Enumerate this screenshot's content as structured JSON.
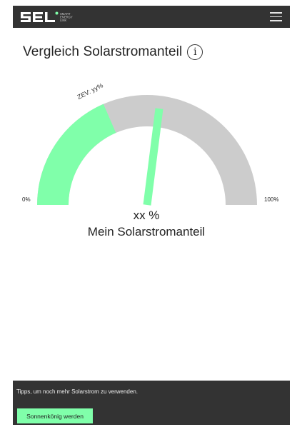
{
  "header": {
    "logo_text": "SEL",
    "logo_tagline": [
      "SMART",
      "ENERGY",
      "LINK"
    ],
    "menu_icon": "hamburger-menu-icon",
    "background_color": "#333333",
    "logo_dot_color": "#80ffaa"
  },
  "page": {
    "title": "Vergleich Solarstromanteil",
    "info_icon_text": "i"
  },
  "gauge": {
    "min_label": "0%",
    "max_label": "100%",
    "zev_label": "ZEV: yy%",
    "zev_share_percent": 37,
    "needle_percent": 54,
    "fill_color": "#80ffaa",
    "track_color": "#cccccc",
    "needle_color": "#80ffaa",
    "value_text": "xx %",
    "value_caption": "Mein Solarstromanteil"
  },
  "tips": {
    "text": "Tipps, um noch mehr Solarstrom zu verwenden.",
    "button_label": "Sonnenkönig werden",
    "panel_color": "#333333",
    "button_color": "#80ffaa"
  }
}
